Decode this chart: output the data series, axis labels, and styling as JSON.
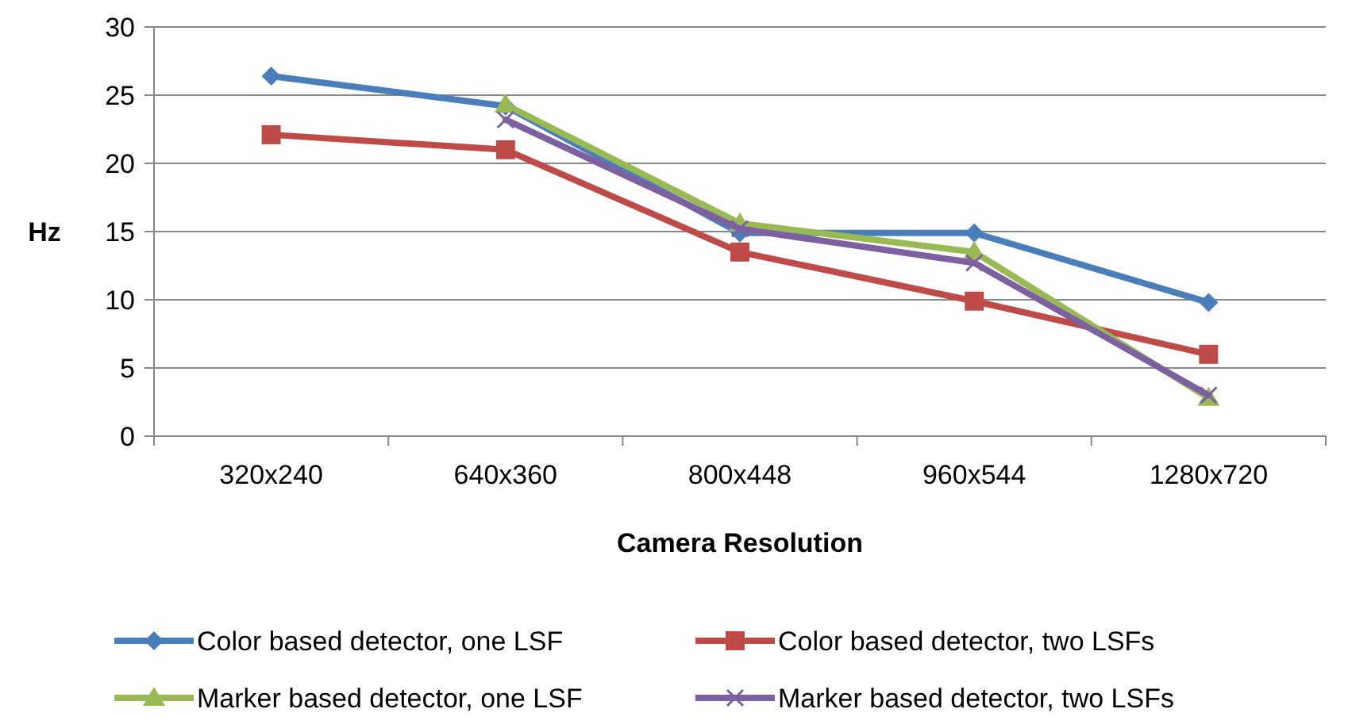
{
  "chart_data": {
    "type": "line",
    "xlabel": "Camera Resolution",
    "ylabel": "Hz",
    "categories": [
      "320x240",
      "640x360",
      "800x448",
      "960x544",
      "1280x720"
    ],
    "ylim": [
      0,
      30
    ],
    "yticks": [
      0,
      5,
      10,
      15,
      20,
      25,
      30
    ],
    "grid": "y",
    "legend": "bottom",
    "series": [
      {
        "name": "Color based detector, one LSF",
        "color": "#4a7ebb",
        "marker": "diamond",
        "values": [
          26.4,
          24.2,
          14.9,
          14.9,
          9.8
        ]
      },
      {
        "name": "Color based detector, two LSFs",
        "color": "#be4b48",
        "marker": "square",
        "values": [
          22.1,
          21.0,
          13.5,
          9.9,
          6.0
        ]
      },
      {
        "name": "Marker based detector, one LSF",
        "color": "#98b954",
        "marker": "triangle",
        "values": [
          null,
          24.3,
          15.6,
          13.5,
          2.8
        ]
      },
      {
        "name": "Marker based detector, two LSFs",
        "color": "#7d60a0",
        "marker": "cross",
        "values": [
          null,
          23.2,
          15.2,
          12.7,
          3.0
        ]
      }
    ]
  }
}
